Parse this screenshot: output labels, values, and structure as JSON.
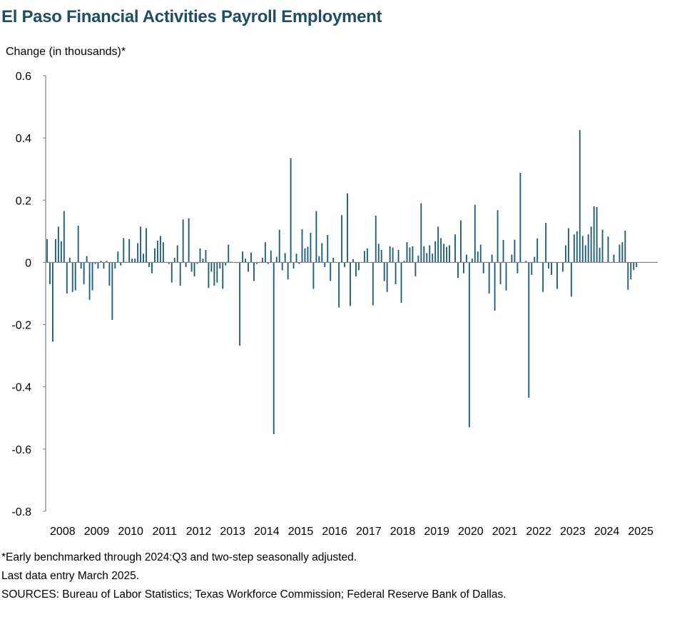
{
  "title": "El Paso Financial Activities Payroll Employment",
  "ylabel": "Change (in thousands)*",
  "notes": {
    "footnote": "*Early benchmarked through 2024:Q3 and two-step seasonally adjusted.",
    "last_entry": "Last data entry March 2025.",
    "sources": "SOURCES:  Bureau of Labor Statistics; Texas Workforce Commission;  Federal Reserve Bank of Dallas."
  },
  "colors": {
    "bar": "#1f5e7c",
    "title": "#1f4e63",
    "axis": "#808080"
  },
  "chart_data": {
    "type": "bar",
    "xlabel": "",
    "ylabel": "Change (in thousands)*",
    "ylim": [
      -0.8,
      0.6
    ],
    "yticks": [
      0.6,
      0.4,
      0.2,
      0,
      -0.2,
      -0.4,
      -0.6,
      -0.8
    ],
    "ytick_labels": [
      "0.6",
      "0.4",
      "0.2",
      "0",
      "-0.2",
      "-0.4",
      "-0.6",
      "-0.8"
    ],
    "xticks": [
      "2008",
      "2009",
      "2010",
      "2011",
      "2012",
      "2013",
      "2014",
      "2015",
      "2016",
      "2017",
      "2018",
      "2019",
      "2020",
      "2021",
      "2022",
      "2023",
      "2024",
      "2025"
    ],
    "start": "2008-01",
    "end": "2025-03",
    "grid": false,
    "series": [
      {
        "values": [
          0.075,
          -0.07,
          -0.255,
          0.075,
          0.115,
          0.068,
          0.165,
          -0.1,
          0.015,
          -0.095,
          -0.09,
          0.118,
          -0.02,
          -0.07,
          0.02,
          -0.12,
          -0.09,
          -0.005,
          -0.02,
          0.005,
          -0.02,
          0.005,
          -0.075,
          -0.185,
          -0.02,
          0.035,
          -0.01,
          0.078,
          0.002,
          0.075,
          0.012,
          0.012,
          0.062,
          0.115,
          0.028,
          0.11,
          -0.015,
          -0.035,
          0.045,
          0.07,
          0.085,
          0.065,
          0.0,
          -0.005,
          -0.065,
          0.015,
          0.055,
          -0.075,
          0.138,
          -0.015,
          0.142,
          -0.03,
          -0.045,
          -0.005,
          0.045,
          0.012,
          0.04,
          -0.082,
          -0.03,
          -0.075,
          -0.065,
          -0.02,
          -0.085,
          -0.01,
          0.057,
          0.002,
          0.0,
          -0.002,
          -0.268,
          0.035,
          0.012,
          -0.03,
          0.032,
          -0.06,
          -0.005,
          0.0,
          0.015,
          0.065,
          -0.005,
          0.038,
          -0.552,
          0.018,
          0.105,
          -0.025,
          0.03,
          -0.055,
          0.335,
          -0.02,
          0.028,
          -0.005,
          0.107,
          0.045,
          0.05,
          0.095,
          -0.085,
          0.165,
          0.02,
          0.062,
          -0.015,
          0.088,
          -0.06,
          0.015,
          0.0,
          -0.145,
          0.152,
          -0.015,
          0.222,
          -0.14,
          0.01,
          -0.045,
          -0.025,
          0.0,
          0.037,
          0.045,
          0.0,
          -0.138,
          0.15,
          0.06,
          0.04,
          -0.06,
          -0.095,
          0.052,
          0.048,
          -0.07,
          0.04,
          -0.13,
          0.005,
          0.065,
          0.048,
          0.052,
          -0.045,
          0.022,
          0.19,
          0.052,
          0.03,
          0.055,
          0.028,
          0.068,
          0.115,
          0.078,
          0.06,
          0.05,
          0.055,
          0.0,
          0.09,
          -0.05,
          0.135,
          -0.035,
          0.025,
          -0.53,
          0.012,
          0.185,
          0.035,
          0.057,
          -0.035,
          0.0,
          -0.1,
          0.025,
          -0.155,
          0.168,
          -0.07,
          0.072,
          -0.09,
          0.0,
          0.025,
          0.073,
          -0.035,
          0.288,
          0.0,
          0.005,
          -0.435,
          -0.04,
          0.018,
          0.077,
          0.0,
          -0.095,
          0.127,
          -0.02,
          -0.04,
          0.0,
          -0.085,
          0.0,
          -0.03,
          0.055,
          0.11,
          -0.11,
          0.09,
          0.1,
          0.425,
          0.085,
          0.055,
          0.09,
          0.115,
          0.18,
          0.178,
          0.047,
          0.105,
          0.0,
          0.083,
          0.0,
          0.025,
          0.0,
          0.057,
          0.065,
          0.102,
          -0.088,
          -0.055,
          -0.025,
          -0.015
        ]
      }
    ]
  }
}
